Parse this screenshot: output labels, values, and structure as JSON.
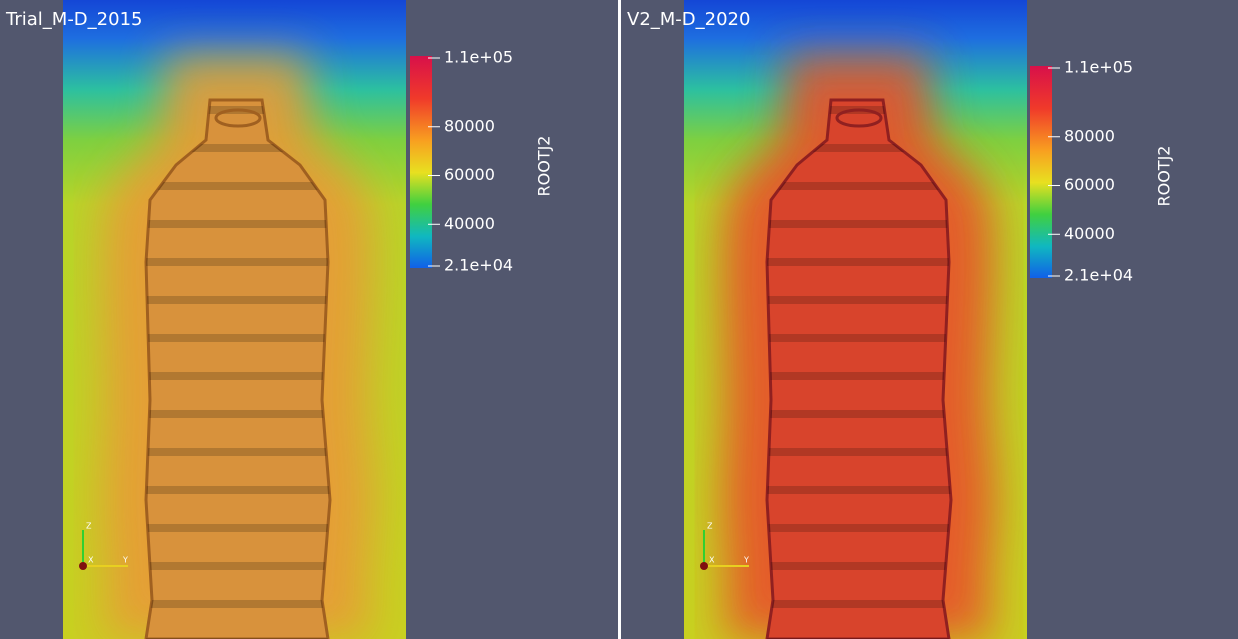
{
  "panels": [
    {
      "title": "Trial_M-D_2015",
      "colorbar": {
        "label": "ROOTJ2",
        "ticks": [
          "1.1e+05",
          "80000",
          "60000",
          "40000",
          "2.1e+04"
        ]
      },
      "axes": [
        "Z",
        "X",
        "Y"
      ]
    },
    {
      "title": "V2_M-D_2020",
      "colorbar": {
        "label": "ROOTJ2",
        "ticks": [
          "1.1e+05",
          "80000",
          "60000",
          "40000",
          "2.1e+04"
        ]
      },
      "axes": [
        "Z",
        "X",
        "Y"
      ]
    }
  ]
}
